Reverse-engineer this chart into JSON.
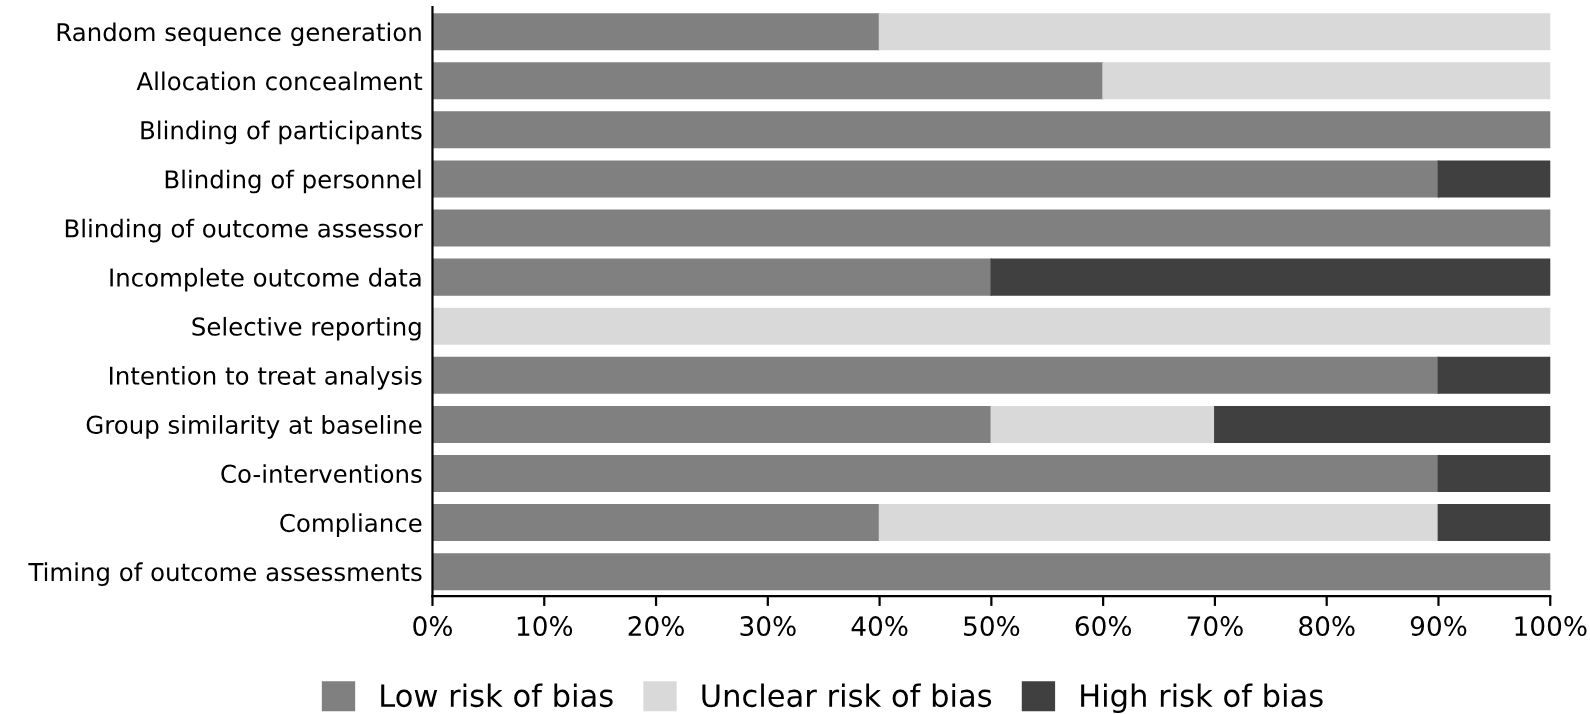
{
  "chart_data": {
    "type": "bar",
    "orientation": "horizontal",
    "stacked": true,
    "categories": [
      "Random sequence generation",
      "Allocation concealment",
      "Blinding of participants",
      "Blinding of personnel",
      "Blinding of outcome assessor",
      "Incomplete outcome data",
      "Selective reporting",
      "Intention to treat analysis",
      "Group similarity at baseline",
      "Co-interventions",
      "Compliance",
      "Timing of outcome assessments"
    ],
    "series": [
      {
        "name": "Low risk of bias",
        "color": "#808080",
        "values": [
          40,
          60,
          100,
          90,
          100,
          50,
          0,
          90,
          50,
          90,
          40,
          100
        ]
      },
      {
        "name": "Unclear risk of bias",
        "color": "#d9d9d9",
        "values": [
          60,
          40,
          0,
          0,
          0,
          0,
          100,
          0,
          20,
          0,
          50,
          0
        ]
      },
      {
        "name": "High risk of bias",
        "color": "#404040",
        "values": [
          0,
          0,
          0,
          10,
          0,
          50,
          0,
          10,
          30,
          10,
          10,
          0
        ]
      }
    ],
    "xlim": [
      0,
      100
    ],
    "xticks": [
      {
        "value": 0,
        "label": "0%"
      },
      {
        "value": 10,
        "label": "10%"
      },
      {
        "value": 20,
        "label": "20%"
      },
      {
        "value": 30,
        "label": "30%"
      },
      {
        "value": 40,
        "label": "40%"
      },
      {
        "value": 50,
        "label": "50%"
      },
      {
        "value": 60,
        "label": "60%"
      },
      {
        "value": 70,
        "label": "70%"
      },
      {
        "value": 80,
        "label": "80%"
      },
      {
        "value": 90,
        "label": "90%"
      },
      {
        "value": 100,
        "label": "100%"
      }
    ],
    "grid": false,
    "legend": "bottom"
  }
}
